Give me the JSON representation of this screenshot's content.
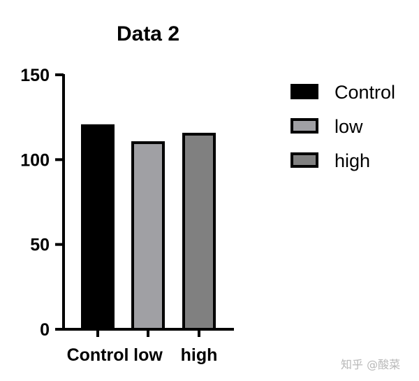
{
  "chart_data": {
    "type": "bar",
    "title": "Data 2",
    "xlabel": "",
    "ylabel": "",
    "categories": [
      "Control",
      "low",
      "high"
    ],
    "values": [
      120,
      110,
      115
    ],
    "colors": [
      "#000000",
      "#a0a0a4",
      "#808080"
    ],
    "edge_color": "#000000",
    "ylim": [
      0,
      150
    ],
    "yticks": [
      0,
      50,
      100,
      150
    ],
    "ytick_labels": [
      "0",
      "50",
      "100",
      "150"
    ],
    "legend": {
      "placement": "top-right",
      "entries": [
        "Control",
        "low",
        "high"
      ]
    },
    "grid": false
  },
  "watermark": "知乎 @酸菜"
}
